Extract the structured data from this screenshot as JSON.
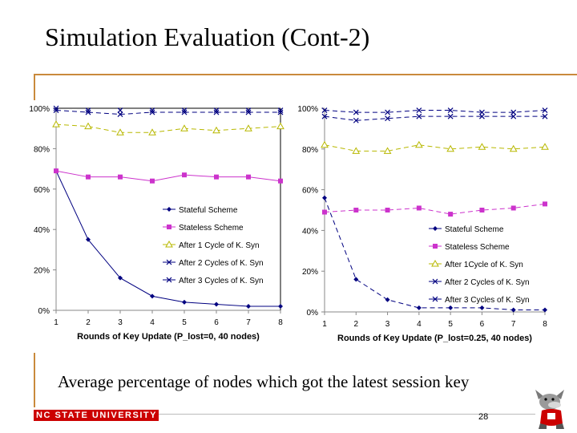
{
  "slide": {
    "title": "Simulation Evaluation (Cont-2)",
    "caption": "Average percentage of nodes which got the latest session key",
    "footer_brand": "NC STATE UNIVERSITY",
    "page_number": "28",
    "accent_color": "#c98a3c",
    "brand_color": "#cc0000"
  },
  "chart_data": [
    {
      "type": "line",
      "xlabel": "Rounds of Key Update (P_lost=0, 40 nodes)",
      "ylabel": "",
      "x": [
        1,
        2,
        3,
        4,
        5,
        6,
        7,
        8
      ],
      "ylim": [
        0,
        100
      ],
      "yticks": [
        "0%",
        "20%",
        "40%",
        "60%",
        "80%",
        "100%"
      ],
      "grid": false,
      "legend_position": "center",
      "series": [
        {
          "name": "Stateful Scheme",
          "marker": "diamond",
          "color": "#000080",
          "values": [
            69,
            35,
            16,
            7,
            4,
            3,
            2,
            2
          ]
        },
        {
          "name": "Stateless Scheme",
          "marker": "square",
          "color": "#cc33cc",
          "values": [
            69,
            66,
            66,
            64,
            67,
            66,
            66,
            64
          ]
        },
        {
          "name": "After 1 Cycle of K. Syn",
          "marker": "triangle",
          "color": "#b8b800",
          "values": [
            92,
            91,
            88,
            88,
            90,
            89,
            90,
            91
          ]
        },
        {
          "name": "After 2 Cycles of K. Syn",
          "marker": "x",
          "color": "#000080",
          "values": [
            99,
            98,
            97,
            98,
            98,
            98,
            98,
            98
          ]
        },
        {
          "name": "After 3 Cycles of K. Syn",
          "marker": "x",
          "color": "#000080",
          "values": [
            100,
            99,
            99,
            99,
            99,
            99,
            99,
            99
          ]
        }
      ]
    },
    {
      "type": "line",
      "xlabel": "Rounds of Key Update (P_lost=0.25, 40 nodes)",
      "ylabel": "",
      "x": [
        1,
        2,
        3,
        4,
        5,
        6,
        7,
        8
      ],
      "ylim": [
        0,
        100
      ],
      "yticks": [
        "0%",
        "20%",
        "40%",
        "60%",
        "80%",
        "100%"
      ],
      "grid": false,
      "legend_position": "bottom-right",
      "series": [
        {
          "name": "Stateful Scheme",
          "marker": "diamond",
          "color": "#000080",
          "values": [
            56,
            16,
            6,
            2,
            2,
            2,
            1,
            1
          ]
        },
        {
          "name": "Stateless Scheme",
          "marker": "square",
          "color": "#cc33cc",
          "values": [
            49,
            50,
            50,
            51,
            48,
            50,
            51,
            53
          ]
        },
        {
          "name": "After 1Cycle of K. Syn",
          "marker": "triangle",
          "color": "#b8b800",
          "values": [
            82,
            79,
            79,
            82,
            80,
            81,
            80,
            81
          ]
        },
        {
          "name": "After 2 Cycles of K. Syn",
          "marker": "x",
          "color": "#000080",
          "values": [
            96,
            94,
            95,
            96,
            96,
            96,
            96,
            96
          ]
        },
        {
          "name": "After 3 Cycles of K. Syn",
          "marker": "x",
          "color": "#000080",
          "values": [
            99,
            98,
            98,
            99,
            99,
            98,
            98,
            99
          ]
        }
      ]
    }
  ]
}
